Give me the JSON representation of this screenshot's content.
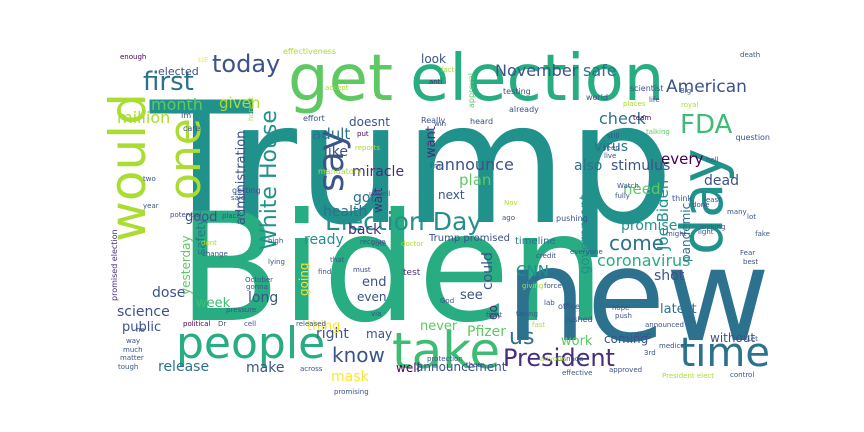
{
  "palette": [
    "#440154",
    "#3b528b",
    "#21918c",
    "#5ec962",
    "#fde725",
    "#2c728e",
    "#27ad81",
    "#472d7b",
    "#aadc32"
  ],
  "words": [
    {
      "text": "Trump",
      "color": "#21918c"
    },
    {
      "text": "Biden",
      "color": "#27ad81"
    },
    {
      "text": "new",
      "color": "#2c728e"
    },
    {
      "text": "election",
      "color": "#27ad81"
    },
    {
      "text": "get",
      "color": "#5ec962"
    },
    {
      "text": "would",
      "color": "#aadc32"
    },
    {
      "text": "people",
      "color": "#27ad81"
    },
    {
      "text": "take",
      "color": "#3fbc73"
    },
    {
      "text": "time",
      "color": "#2c728e"
    },
    {
      "text": "day",
      "color": "#21918c"
    },
    {
      "text": "say",
      "color": "#3b528b"
    },
    {
      "text": "one",
      "color": "#aadc32"
    },
    {
      "text": "Election Day",
      "color": "#21918c"
    },
    {
      "text": "President",
      "color": "#472d7b"
    },
    {
      "text": "first",
      "color": "#2c728e"
    },
    {
      "text": "today",
      "color": "#3b528b"
    },
    {
      "text": "FDA",
      "color": "#3fbc73"
    },
    {
      "text": "know",
      "color": "#3b528b"
    },
    {
      "text": "us",
      "color": "#2c728e"
    },
    {
      "text": "White House",
      "color": "#21918c"
    },
    {
      "text": "come",
      "color": "#2c728e"
    },
    {
      "text": "coronavirus",
      "color": "#27ad81"
    },
    {
      "text": "American",
      "color": "#3b528b"
    },
    {
      "text": "November",
      "color": "#3b528b"
    },
    {
      "text": "safe",
      "color": "#2c728e"
    },
    {
      "text": "month",
      "color": "#5ec962"
    },
    {
      "text": "million",
      "color": "#aadc32"
    },
    {
      "text": "given",
      "color": "#aadc32"
    },
    {
      "text": "check",
      "color": "#2c728e"
    },
    {
      "text": "virus",
      "color": "#2c728e"
    },
    {
      "text": "stimulus",
      "color": "#3b528b"
    },
    {
      "text": "announce",
      "color": "#3b528b"
    },
    {
      "text": "also",
      "color": "#2c728e"
    },
    {
      "text": "every",
      "color": "#440154"
    },
    {
      "text": "dead",
      "color": "#3b528b"
    },
    {
      "text": "need",
      "color": "#5ec962"
    },
    {
      "text": "adult",
      "color": "#2c728e"
    },
    {
      "text": "like",
      "color": "#3b528b"
    },
    {
      "text": "miracle",
      "color": "#472d7b"
    },
    {
      "text": "doesnt",
      "color": "#3b528b"
    },
    {
      "text": "look",
      "color": "#3b528b"
    },
    {
      "text": "Joe Biden",
      "color": "#21918c"
    },
    {
      "text": "pandemic",
      "color": "#2c728e"
    },
    {
      "text": "good",
      "color": "#3b528b"
    },
    {
      "text": "got",
      "color": "#2c728e"
    },
    {
      "text": "back",
      "color": "#472d7b"
    },
    {
      "text": "health",
      "color": "#2c728e"
    },
    {
      "text": "ready",
      "color": "#21918c"
    },
    {
      "text": "promise",
      "color": "#21918c"
    },
    {
      "text": "shot",
      "color": "#3b528b"
    },
    {
      "text": "government",
      "color": "#21918c"
    },
    {
      "text": "could",
      "color": "#3b528b"
    },
    {
      "text": "plan",
      "color": "#5ec962"
    },
    {
      "text": "next",
      "color": "#3b528b"
    },
    {
      "text": "wait",
      "color": "#472d7b"
    },
    {
      "text": "want",
      "color": "#472d7b"
    },
    {
      "text": "going",
      "color": "#fde725"
    },
    {
      "text": "administration",
      "color": "#3b528b"
    },
    {
      "text": "safety",
      "color": "#2c728e"
    },
    {
      "text": "yesterday",
      "color": "#5ec962"
    },
    {
      "text": "dose",
      "color": "#3b528b"
    },
    {
      "text": "science",
      "color": "#3b528b"
    },
    {
      "text": "public",
      "color": "#3b528b"
    },
    {
      "text": "long",
      "color": "#3b528b"
    },
    {
      "text": "week",
      "color": "#3fbc73"
    },
    {
      "text": "release",
      "color": "#2c728e"
    },
    {
      "text": "make",
      "color": "#3b528b"
    },
    {
      "text": "right",
      "color": "#3b528b"
    },
    {
      "text": "mask",
      "color": "#fde725"
    },
    {
      "text": "thing",
      "color": "#fde725"
    },
    {
      "text": "end",
      "color": "#3b528b"
    },
    {
      "text": "even",
      "color": "#3b528b"
    },
    {
      "text": "CNN",
      "color": "#21918c"
    },
    {
      "text": "see",
      "color": "#3b528b"
    },
    {
      "text": "go",
      "color": "#472d7b"
    },
    {
      "text": "never",
      "color": "#5ec962"
    },
    {
      "text": "Pfizer",
      "color": "#5ec962"
    },
    {
      "text": "work",
      "color": "#5ec962"
    },
    {
      "text": "coming",
      "color": "#3b528b"
    },
    {
      "text": "latest",
      "color": "#2c728e"
    },
    {
      "text": "without",
      "color": "#3b528b"
    },
    {
      "text": "may",
      "color": "#3b528b"
    },
    {
      "text": "well",
      "color": "#440154"
    },
    {
      "text": "announcement",
      "color": "#3b528b"
    },
    {
      "text": "Trump promised",
      "color": "#3b528b"
    },
    {
      "text": "timeline",
      "color": "#2c728e"
    },
    {
      "text": "elected",
      "color": "#3b528b"
    },
    {
      "text": "test",
      "color": "#472d7b"
    },
    {
      "text": "promised election",
      "color": "#472d7b"
    },
    {
      "text": "effectiveness",
      "color": "#aadc32"
    },
    {
      "text": "approval",
      "color": "#5ec962"
    },
    {
      "text": "enough",
      "color": "#440154"
    },
    {
      "text": "LIE",
      "color": "#fde725"
    },
    {
      "text": "care",
      "color": "#3b528b"
    },
    {
      "text": "Im",
      "color": "#3b528b"
    },
    {
      "text": "effort",
      "color": "#3b528b"
    },
    {
      "text": "accept",
      "color": "#aadc32"
    },
    {
      "text": "Really",
      "color": "#3b528b"
    },
    {
      "text": "fact",
      "color": "#aadc32"
    },
    {
      "text": "anti",
      "color": "#472d7b"
    },
    {
      "text": "heard",
      "color": "#3b528b"
    },
    {
      "text": "testing",
      "color": "#3b528b"
    },
    {
      "text": "already",
      "color": "#3b528b"
    },
    {
      "text": "world",
      "color": "#3b528b"
    },
    {
      "text": "scientist",
      "color": "#3b528b"
    },
    {
      "text": "places",
      "color": "#aadc32"
    },
    {
      "text": "royal",
      "color": "#aadc32"
    },
    {
      "text": "death",
      "color": "#3b528b"
    },
    {
      "text": "Big",
      "color": "#3b528b"
    },
    {
      "text": "team",
      "color": "#440154"
    },
    {
      "text": "least",
      "color": "#3b528b"
    },
    {
      "text": "talking",
      "color": "#5ec962"
    },
    {
      "text": "hell",
      "color": "#3b528b"
    },
    {
      "text": "mandatory",
      "color": "#aadc32"
    },
    {
      "text": "put",
      "color": "#440154"
    },
    {
      "text": "reports",
      "color": "#aadc32"
    },
    {
      "text": "win",
      "color": "#3b528b"
    },
    {
      "text": "still",
      "color": "#3b528b"
    },
    {
      "text": "seen",
      "color": "#3b528b"
    },
    {
      "text": "live",
      "color": "#3b528b"
    },
    {
      "text": "think",
      "color": "#3b528b"
    },
    {
      "text": "Watch",
      "color": "#3b528b"
    },
    {
      "text": "fully",
      "color": "#3b528b"
    },
    {
      "text": "many",
      "color": "#3b528b"
    },
    {
      "text": "year",
      "color": "#3b528b"
    },
    {
      "text": "two",
      "color": "#3b528b"
    },
    {
      "text": "getting",
      "color": "#3b528b"
    },
    {
      "text": "said",
      "color": "#3b528b"
    },
    {
      "text": "unveil",
      "color": "#3b528b"
    },
    {
      "text": "vote",
      "color": "#3b528b"
    },
    {
      "text": "Nov",
      "color": "#aadc32"
    },
    {
      "text": "ago",
      "color": "#3b528b"
    },
    {
      "text": "pushing",
      "color": "#3b528b"
    },
    {
      "text": "potential",
      "color": "#3b528b"
    },
    {
      "text": "place",
      "color": "#3b528b"
    },
    {
      "text": "dont",
      "color": "#aadc32"
    },
    {
      "text": "change",
      "color": "#3b528b"
    },
    {
      "text": "high",
      "color": "#3b528b"
    },
    {
      "text": "receive",
      "color": "#3b528b"
    },
    {
      "text": "doctor",
      "color": "#aadc32"
    },
    {
      "text": "credit",
      "color": "#3b528b"
    },
    {
      "text": "everyone",
      "color": "#3b528b"
    },
    {
      "text": "might",
      "color": "#3b528b"
    },
    {
      "text": "light",
      "color": "#3b528b"
    },
    {
      "text": "best",
      "color": "#3b528b"
    },
    {
      "text": "fake",
      "color": "#3b528b"
    },
    {
      "text": "Fear",
      "color": "#3b528b"
    },
    {
      "text": "lying",
      "color": "#3b528b"
    },
    {
      "text": "find",
      "color": "#3b528b"
    },
    {
      "text": "October",
      "color": "#3b528b"
    },
    {
      "text": "gonna",
      "color": "#3b528b"
    },
    {
      "text": "pressure",
      "color": "#3b528b"
    },
    {
      "text": "must",
      "color": "#3b528b"
    },
    {
      "text": "via",
      "color": "#3b528b"
    },
    {
      "text": "God",
      "color": "#3b528b"
    },
    {
      "text": "giving",
      "color": "#aadc32"
    },
    {
      "text": "office",
      "color": "#3b528b"
    },
    {
      "text": "taking",
      "color": "#3b528b"
    },
    {
      "text": "rushed",
      "color": "#3b528b"
    },
    {
      "text": "hope",
      "color": "#3b528b"
    },
    {
      "text": "push",
      "color": "#3b528b"
    },
    {
      "text": "lab",
      "color": "#3b528b"
    },
    {
      "text": "force",
      "color": "#3b528b"
    },
    {
      "text": "released",
      "color": "#3b528b"
    },
    {
      "text": "political",
      "color": "#440154"
    },
    {
      "text": "Dr",
      "color": "#3b528b"
    },
    {
      "text": "cell",
      "color": "#3b528b"
    },
    {
      "text": "fight",
      "color": "#3b528b"
    },
    {
      "text": "protection",
      "color": "#3b528b"
    },
    {
      "text": "there",
      "color": "#3b528b"
    },
    {
      "text": "Canada",
      "color": "#3b528b"
    },
    {
      "text": "drug",
      "color": "#3b528b"
    },
    {
      "text": "medical",
      "color": "#3b528b"
    },
    {
      "text": "3rd",
      "color": "#3b528b"
    },
    {
      "text": "he",
      "color": "#3b528b"
    },
    {
      "text": "way",
      "color": "#3b528b"
    },
    {
      "text": "much",
      "color": "#3b528b"
    },
    {
      "text": "matter",
      "color": "#3b528b"
    },
    {
      "text": "tough",
      "color": "#3b528b"
    },
    {
      "text": "across",
      "color": "#3b528b"
    },
    {
      "text": "promising",
      "color": "#3b528b"
    },
    {
      "text": "effective",
      "color": "#3b528b"
    },
    {
      "text": "approved",
      "color": "#3b528b"
    },
    {
      "text": "President elect",
      "color": "#aadc32"
    },
    {
      "text": "control",
      "color": "#3b528b"
    },
    {
      "text": "question",
      "color": "#3b528b"
    },
    {
      "text": "announced",
      "color": "#3b528b"
    },
    {
      "text": "done",
      "color": "#3b528b"
    },
    {
      "text": "Let",
      "color": "#3b528b"
    },
    {
      "text": "lot",
      "color": "#3b528b"
    },
    {
      "text": "life",
      "color": "#3b528b"
    },
    {
      "text": "looking",
      "color": "#3b528b"
    },
    {
      "text": "honest",
      "color": "#aadc32"
    },
    {
      "text": "that",
      "color": "#3b528b"
    },
    {
      "text": "I'm",
      "color": "#3b528b"
    },
    {
      "text": "fast",
      "color": "#aadc32"
    },
    {
      "text": "anyone",
      "color": "#aadc32"
    }
  ]
}
